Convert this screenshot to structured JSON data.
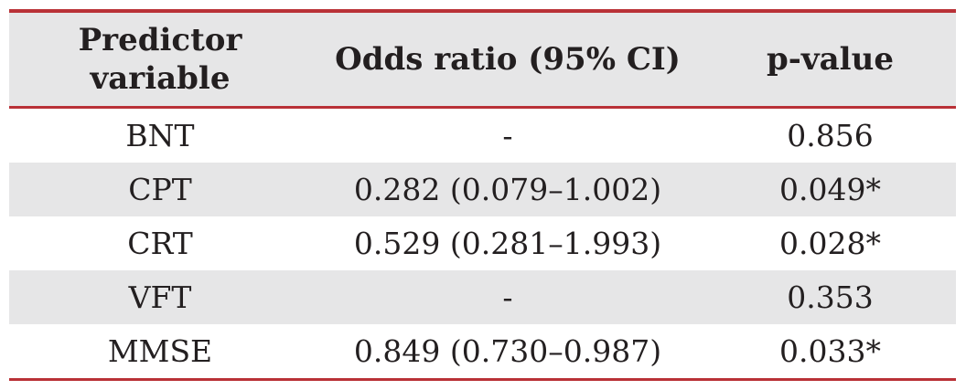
{
  "table": {
    "header": {
      "predictor": "Predictor variable",
      "odds_ratio": "Odds ratio (95% CI)",
      "p_value": "p-value"
    },
    "rows": [
      {
        "predictor": "BNT",
        "odds_ratio": "-",
        "p_value": "0.856"
      },
      {
        "predictor": "CPT",
        "odds_ratio": "0.282 (0.079–1.002)",
        "p_value": "0.049*"
      },
      {
        "predictor": "CRT",
        "odds_ratio": "0.529 (0.281–1.993)",
        "p_value": "0.028*"
      },
      {
        "predictor": "VFT",
        "odds_ratio": "-",
        "p_value": "0.353"
      },
      {
        "predictor": "MMSE",
        "odds_ratio": "0.849 (0.730–0.987)",
        "p_value": "0.033*"
      }
    ],
    "colors": {
      "rule_red": "#b93137",
      "row_shade": "#e6e6e7",
      "text": "#231f20"
    }
  }
}
